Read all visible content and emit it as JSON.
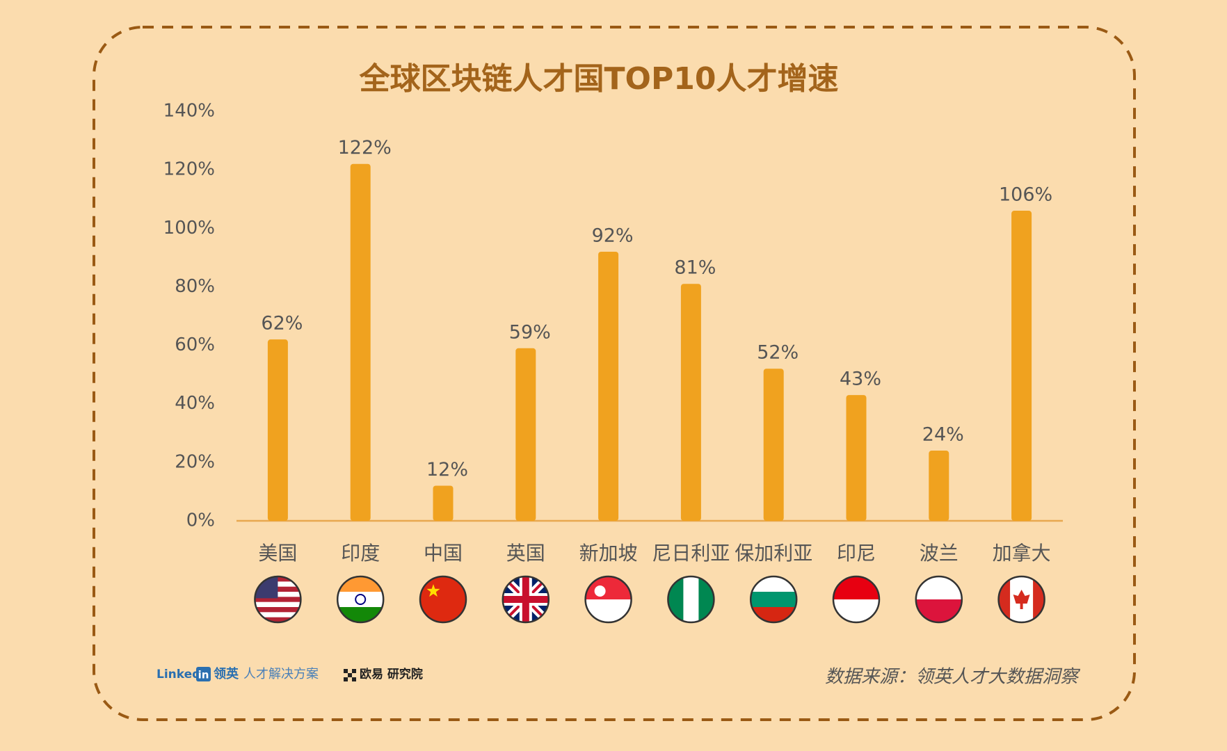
{
  "chart_data": {
    "type": "bar",
    "title": "全球区块链人才国TOP10人才增速",
    "categories": [
      "美国",
      "印度",
      "中国",
      "英国",
      "新加坡",
      "尼日利亚",
      "保加利亚",
      "印尼",
      "波兰",
      "加拿大"
    ],
    "values": [
      62,
      122,
      12,
      59,
      92,
      81,
      52,
      43,
      24,
      106
    ],
    "value_labels": [
      "62%",
      "122%",
      "12%",
      "59%",
      "92%",
      "81%",
      "52%",
      "43%",
      "24%",
      "106%"
    ],
    "color": "#f0a21f",
    "ylim": [
      0,
      140
    ],
    "yticks": [
      {
        "value": 0,
        "label": "0%"
      },
      {
        "value": 20,
        "label": "20%"
      },
      {
        "value": 40,
        "label": "40%"
      },
      {
        "value": 60,
        "label": "60%"
      },
      {
        "value": 80,
        "label": "80%"
      },
      {
        "value": 100,
        "label": "100%"
      },
      {
        "value": 120,
        "label": "120%"
      },
      {
        "value": 140,
        "label": "140%"
      }
    ],
    "grid": false
  },
  "footer": {
    "logo_linkedin": "Linked",
    "logo_in": "in",
    "logo_linkedin_cn": "领英",
    "logo_linkedin_sub": "人才解决方案",
    "logo_okex": "欧易 研究院",
    "source": "数据来源：领英人才大数据洞察"
  }
}
